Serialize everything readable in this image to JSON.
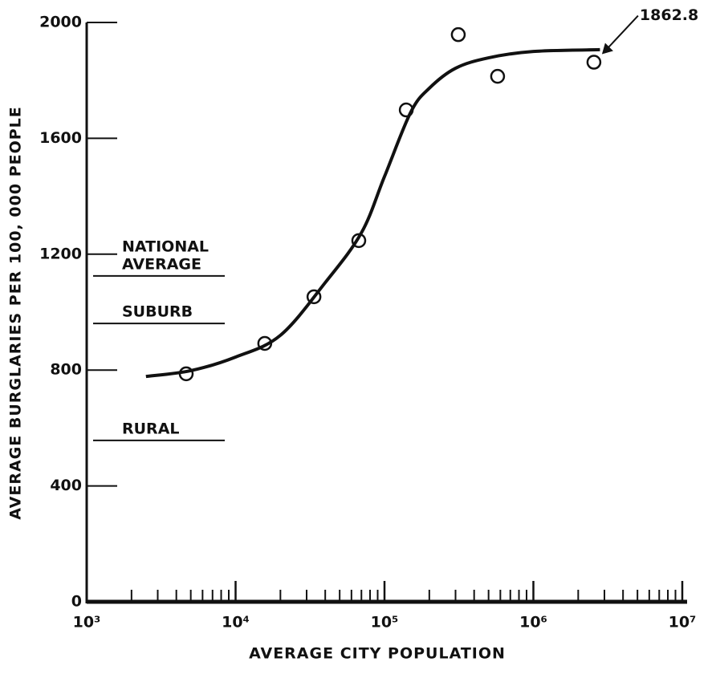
{
  "chart_data": {
    "type": "scatter",
    "x_label": "AVERAGE CITY POPULATION",
    "y_label": "AVERAGE BURGLARIES PER 100, 000 PEOPLE",
    "xscale": "log",
    "xlim": [
      1000,
      10000000
    ],
    "ylim": [
      0,
      2000
    ],
    "xticks": [
      {
        "value": 1000,
        "label": "10³"
      },
      {
        "value": 10000,
        "label": "10⁴"
      },
      {
        "value": 100000,
        "label": "10⁵"
      },
      {
        "value": 1000000,
        "label": "10⁶"
      },
      {
        "value": 10000000,
        "label": "10⁷"
      }
    ],
    "xminor_ticks": [
      2000,
      3000,
      4000,
      5000,
      6000,
      7000,
      8000,
      9000,
      20000,
      30000,
      40000,
      50000,
      60000,
      70000,
      80000,
      90000,
      200000,
      300000,
      400000,
      500000,
      600000,
      700000,
      800000,
      900000,
      2000000,
      3000000,
      4000000,
      5000000,
      6000000,
      7000000,
      8000000,
      9000000
    ],
    "yticks": [
      0,
      400,
      800,
      1200,
      1600,
      2000
    ],
    "color": "#111111",
    "series": [
      {
        "style": "points",
        "x": [
          4660,
          15700,
          33600,
          67200,
          140000,
          313000,
          575000,
          2550000
        ],
        "values": [
          787,
          892,
          1053,
          1247,
          1698,
          1958,
          1814,
          1862.8
        ]
      },
      {
        "style": "line",
        "x": [
          2500,
          5000,
          10000,
          20000,
          40000,
          70000,
          100000,
          150000,
          200000,
          300000,
          500000,
          1000000,
          2800000
        ],
        "values": [
          778,
          798,
          845,
          920,
          1102,
          1274,
          1468,
          1690,
          1773,
          1842,
          1878,
          1900,
          1906
        ]
      }
    ],
    "reference_lines": [
      {
        "label_lines": [
          "NATIONAL",
          "AVERAGE"
        ],
        "value": 1125
      },
      {
        "label_lines": [
          "SUBURB"
        ],
        "value": 961
      },
      {
        "label_lines": [
          "RURAL"
        ],
        "value": 557
      }
    ],
    "annotations": [
      {
        "text": "1862.8",
        "series": 0,
        "point": 7
      }
    ]
  }
}
